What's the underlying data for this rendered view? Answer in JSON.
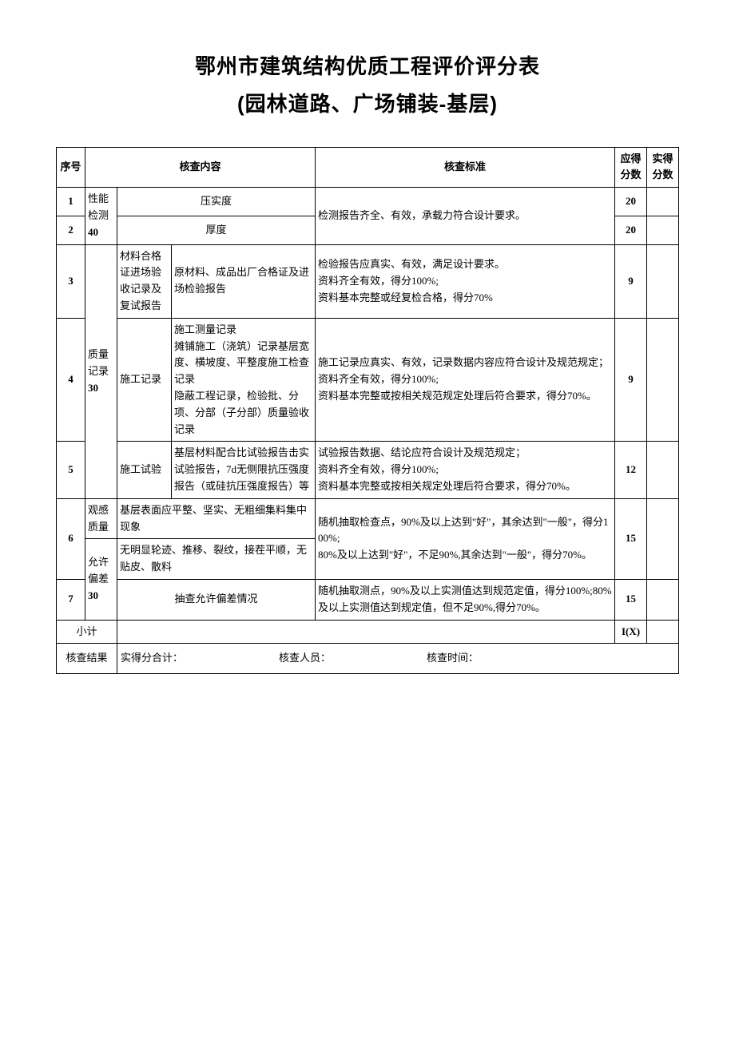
{
  "title": {
    "line1": "鄂州市建筑结构优质工程评价评分表",
    "line2": "(园林道路、广场铺装-基层)"
  },
  "headers": {
    "seq": "序号",
    "content": "核查内容",
    "standard": "核查标准",
    "score_due": "应得分数",
    "score_actual": "实得分数"
  },
  "cats": {
    "perf": {
      "label": "性能检测",
      "weight": "40"
    },
    "qual": {
      "label": "质量记录",
      "weight": "30"
    },
    "vis": {
      "label": "观感质量",
      "weight": ""
    },
    "tol": {
      "label": "允许偏差",
      "weight": "30"
    }
  },
  "rows": {
    "r1": {
      "seq": "1",
      "sub": "",
      "content": "压实度",
      "score": "20"
    },
    "r2": {
      "seq": "2",
      "sub": "",
      "content": "厚度",
      "score": "20"
    },
    "std12": "检测报告齐全、有效，承载力符合设计要求。",
    "r3": {
      "seq": "3",
      "sub": "材料合格证进场验收记录及复试报告",
      "content": "原材料、成品出厂合格证及进场检验报告",
      "standard": "检验报告应真实、有效，满足设计要求。\n资料齐全有效，得分100%;\n资料基本完整或经复检合格，得分70%",
      "score": "9"
    },
    "r4": {
      "seq": "4",
      "sub": "施工记录",
      "content": "施工测量记录\n摊铺施工（浇筑）记录基层宽度、横坡度、平整度施工检查记录\n隐蔽工程记录，检验批、分项、分部（子分部）质量验收记录",
      "standard": "施工记录应真实、有效，记录数据内容应符合设计及规范规定；资料齐全有效，得分100%;\n资料基本完整或按相关规范规定处理后符合要求，得分70%。",
      "score": "9"
    },
    "r5": {
      "seq": "5",
      "sub": "施工试验",
      "content": "基层材料配合比试验报告击实试验报告，7d无侧限抗压强度报告（或硅抗压强度报告）等",
      "standard": "试验报告数据、结论应符合设计及规范规定；\n资料齐全有效，得分100%;\n资料基本完整或按相关规定处理后符合要求，得分70%。",
      "score": "12"
    },
    "r6": {
      "seq": "6",
      "content_a": "基层表面应平整、坚实、无粗细集料集中现象",
      "content_b": "无明显轮迹、推移、裂纹，接茬平顺，无贴皮、散料",
      "standard": "随机抽取检查点，90%及以上达到\"好\"，其余达到\"一般\"，得分100%;\n80%及以上达到\"好\"，不足90%,其余达到\"一般\"，得分70%。",
      "score": "15"
    },
    "r7": {
      "seq": "7",
      "content": "抽查允许偏差情况",
      "standard": "随机抽取测点，90%及以上实测值达到规范定值，得分100%;80%及以上实测值达到规定值，但不足90%,得分70%。",
      "score": "15"
    }
  },
  "subtotal": {
    "label": "小计",
    "value": "I(X)"
  },
  "footer": {
    "result_label": "核查结果",
    "total_label": "实得分合计：",
    "person_label": "核查人员：",
    "time_label": "核查时间："
  }
}
